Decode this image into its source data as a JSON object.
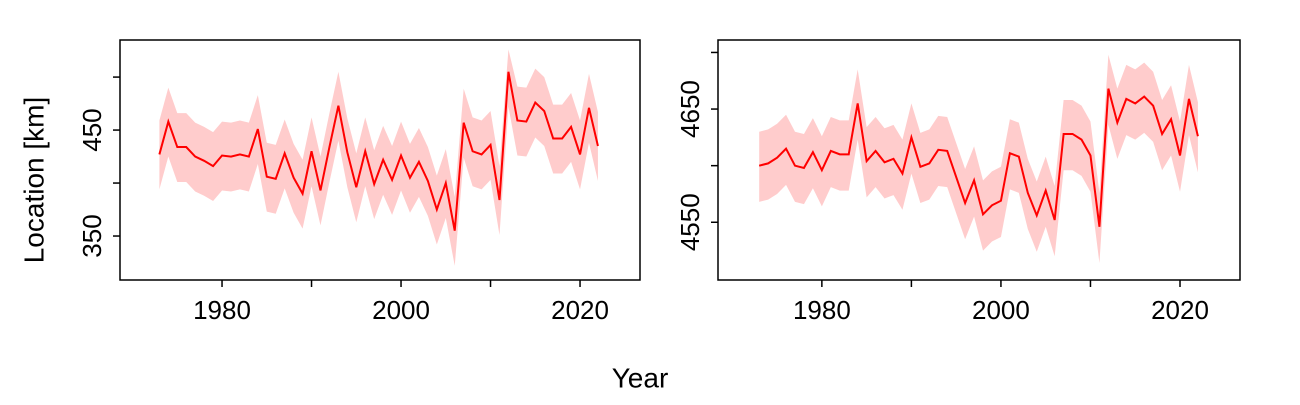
{
  "xlabel": "Year",
  "chart_data": [
    {
      "type": "line",
      "ylabel": "Location [km]",
      "x": [
        1973,
        1974,
        1975,
        1976,
        1977,
        1978,
        1979,
        1980,
        1981,
        1982,
        1983,
        1984,
        1985,
        1986,
        1987,
        1988,
        1989,
        1990,
        1991,
        1992,
        1993,
        1994,
        1995,
        1996,
        1997,
        1998,
        1999,
        2000,
        2001,
        2002,
        2003,
        2004,
        2005,
        2006,
        2007,
        2008,
        2009,
        2010,
        2011,
        2012,
        2013,
        2014,
        2015,
        2016,
        2017,
        2018,
        2019,
        2020,
        2021,
        2022
      ],
      "series": [
        {
          "color": "#ff0000",
          "band_color": "#ffcccc",
          "values": [
            427,
            458,
            434,
            434,
            425,
            421,
            416,
            426,
            425,
            427,
            425,
            451,
            406,
            404,
            428,
            405,
            390,
            430,
            393,
            434,
            473,
            429,
            396,
            430,
            399,
            422,
            403,
            426,
            405,
            420,
            402,
            375,
            400,
            355,
            457,
            430,
            427,
            436,
            384,
            505,
            459,
            458,
            476,
            468,
            442,
            442,
            453,
            427,
            471,
            435
          ],
          "upper": [
            459,
            490,
            466,
            466,
            457,
            453,
            448,
            458,
            457,
            459,
            457,
            483,
            438,
            436,
            460,
            437,
            422,
            462,
            425,
            466,
            505,
            461,
            428,
            462,
            431,
            454,
            435,
            458,
            437,
            452,
            434,
            407,
            432,
            387,
            489,
            462,
            459,
            468,
            416,
            526,
            491,
            490,
            508,
            500,
            474,
            474,
            485,
            459,
            503,
            467
          ],
          "lower": [
            394,
            425,
            401,
            401,
            392,
            388,
            383,
            393,
            392,
            394,
            392,
            418,
            373,
            371,
            395,
            372,
            357,
            397,
            360,
            401,
            440,
            396,
            363,
            397,
            366,
            389,
            370,
            393,
            372,
            387,
            369,
            342,
            367,
            322,
            424,
            397,
            394,
            403,
            351,
            472,
            426,
            425,
            443,
            435,
            409,
            409,
            420,
            394,
            438,
            402
          ]
        }
      ],
      "xlim": [
        1968.6,
        2026.7
      ],
      "xticks": [
        1980,
        2000,
        2020
      ],
      "xminorticks": [
        1990,
        2010
      ],
      "ylim": [
        308.5,
        535
      ],
      "yticks": [
        350,
        450
      ],
      "yminorticks": [
        400,
        500
      ]
    },
    {
      "type": "line",
      "x": [
        1973,
        1974,
        1975,
        1976,
        1977,
        1978,
        1979,
        1980,
        1981,
        1982,
        1983,
        1984,
        1985,
        1986,
        1987,
        1988,
        1989,
        1990,
        1991,
        1992,
        1993,
        1994,
        1995,
        1996,
        1997,
        1998,
        1999,
        2000,
        2001,
        2002,
        2003,
        2004,
        2005,
        2006,
        2007,
        2008,
        2009,
        2010,
        2011,
        2012,
        2013,
        2014,
        2015,
        2016,
        2017,
        2018,
        2019,
        2020,
        2021,
        2022
      ],
      "series": [
        {
          "color": "#ff0000",
          "band_color": "#ffcccc",
          "values": [
            4600,
            4602,
            4607,
            4615,
            4600,
            4598,
            4612,
            4596,
            4613,
            4610,
            4610,
            4655,
            4604,
            4613,
            4603,
            4606,
            4593,
            4625,
            4599,
            4602,
            4614,
            4613,
            4590,
            4567,
            4587,
            4557,
            4565,
            4569,
            4611,
            4608,
            4576,
            4556,
            4578,
            4552,
            4628,
            4628,
            4623,
            4609,
            4546,
            4668,
            4638,
            4659,
            4655,
            4661,
            4653,
            4628,
            4641,
            4609,
            4659,
            4626
          ],
          "upper": [
            4630,
            4632,
            4637,
            4645,
            4630,
            4628,
            4642,
            4626,
            4643,
            4640,
            4640,
            4685,
            4634,
            4643,
            4633,
            4636,
            4623,
            4655,
            4629,
            4632,
            4644,
            4643,
            4620,
            4597,
            4617,
            4587,
            4595,
            4599,
            4641,
            4638,
            4606,
            4586,
            4608,
            4582,
            4658,
            4658,
            4653,
            4639,
            4576,
            4698,
            4668,
            4689,
            4685,
            4691,
            4683,
            4658,
            4671,
            4639,
            4689,
            4656
          ],
          "lower": [
            4568,
            4570,
            4575,
            4583,
            4568,
            4566,
            4580,
            4564,
            4581,
            4578,
            4578,
            4623,
            4572,
            4581,
            4571,
            4574,
            4561,
            4593,
            4567,
            4570,
            4582,
            4581,
            4558,
            4535,
            4555,
            4525,
            4533,
            4537,
            4579,
            4576,
            4544,
            4524,
            4546,
            4520,
            4596,
            4596,
            4591,
            4577,
            4514,
            4636,
            4606,
            4627,
            4623,
            4629,
            4621,
            4596,
            4609,
            4577,
            4627,
            4594
          ]
        }
      ],
      "xlim": [
        1968.4,
        2026.7
      ],
      "xticks": [
        1980,
        2000,
        2020
      ],
      "xminorticks": [
        1990,
        2010
      ],
      "ylim": [
        4499,
        4711
      ],
      "yticks": [
        4550,
        4650
      ],
      "yminorticks": [
        4600,
        4700
      ]
    }
  ]
}
